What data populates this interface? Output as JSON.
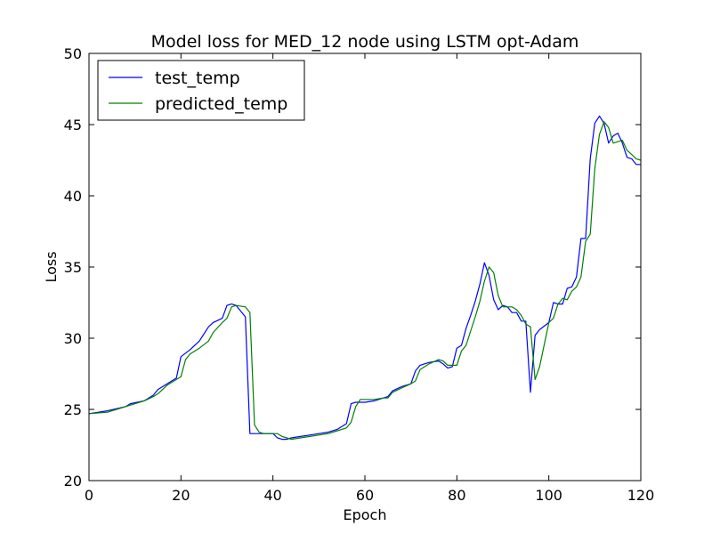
{
  "chart_data": {
    "type": "line",
    "title": "Model loss for MED_12 node using LSTM opt-Adam",
    "xlabel": "Epoch",
    "ylabel": "Loss",
    "xlim": [
      0,
      120
    ],
    "ylim": [
      20,
      50
    ],
    "xticks": [
      0,
      20,
      40,
      60,
      80,
      100,
      120
    ],
    "yticks": [
      20,
      25,
      30,
      35,
      40,
      45,
      50
    ],
    "grid": false,
    "legend_position": "top-left",
    "series": [
      {
        "name": "test_temp",
        "color": "#0000ff",
        "x": [
          0,
          4,
          8,
          9,
          12,
          14,
          15,
          17,
          19,
          20,
          22,
          24,
          26,
          27,
          29,
          30,
          31,
          32,
          34,
          35,
          36,
          38,
          40,
          41,
          42,
          43,
          44,
          46,
          48,
          50,
          52,
          54,
          56,
          57,
          58,
          60,
          62,
          64,
          65,
          66,
          68,
          70,
          71,
          72,
          74,
          76,
          77,
          78,
          79,
          80,
          81,
          82,
          83,
          84,
          85,
          86,
          87,
          88,
          89,
          90,
          91,
          92,
          93,
          94,
          95,
          96,
          97,
          98,
          100,
          101,
          102,
          103,
          104,
          105,
          106,
          107,
          108,
          109,
          110,
          111,
          112,
          113,
          114,
          115,
          116,
          117,
          118,
          119,
          120
        ],
        "y": [
          24.7,
          24.9,
          25.2,
          25.4,
          25.6,
          26.0,
          26.4,
          26.8,
          27.2,
          28.7,
          29.2,
          29.8,
          30.8,
          31.1,
          31.4,
          32.3,
          32.4,
          32.3,
          31.5,
          23.3,
          23.3,
          23.3,
          23.3,
          23.0,
          22.9,
          22.9,
          23.0,
          23.1,
          23.2,
          23.3,
          23.4,
          23.6,
          24.0,
          25.4,
          25.5,
          25.5,
          25.6,
          25.8,
          25.9,
          26.3,
          26.6,
          26.8,
          27.7,
          28.1,
          28.3,
          28.4,
          28.2,
          27.9,
          28.0,
          29.3,
          29.5,
          30.7,
          31.6,
          32.6,
          33.8,
          35.3,
          34.4,
          32.7,
          32.0,
          32.3,
          32.2,
          31.8,
          31.8,
          31.2,
          31.2,
          26.2,
          30.2,
          30.6,
          31.1,
          32.5,
          32.4,
          32.4,
          33.5,
          33.6,
          34.3,
          37.0,
          37.0,
          42.6,
          45.1,
          45.6,
          45.1,
          43.7,
          44.2,
          44.4,
          43.7,
          42.7,
          42.6,
          42.2,
          42.2
        ]
      },
      {
        "name": "predicted_temp",
        "color": "#008000",
        "x": [
          0,
          4,
          8,
          9,
          12,
          14,
          15,
          17,
          19,
          20,
          21,
          22,
          24,
          26,
          27,
          29,
          30,
          31,
          32,
          34,
          35,
          36,
          37,
          38,
          40,
          41,
          42,
          43,
          44,
          46,
          48,
          50,
          52,
          54,
          56,
          57,
          58,
          59,
          60,
          62,
          64,
          65,
          66,
          68,
          70,
          71,
          72,
          74,
          76,
          77,
          78,
          79,
          80,
          81,
          82,
          83,
          84,
          85,
          86,
          87,
          88,
          89,
          90,
          91,
          92,
          93,
          94,
          95,
          96,
          97,
          98,
          100,
          101,
          102,
          103,
          104,
          105,
          106,
          107,
          108,
          109,
          110,
          111,
          112,
          113,
          114,
          115,
          116,
          117,
          118,
          119,
          120
        ],
        "y": [
          24.7,
          24.8,
          25.2,
          25.3,
          25.6,
          25.9,
          26.1,
          26.7,
          27.1,
          27.3,
          28.5,
          28.9,
          29.3,
          29.8,
          30.4,
          31.1,
          31.4,
          32.2,
          32.3,
          32.2,
          31.8,
          23.9,
          23.4,
          23.3,
          23.3,
          23.3,
          23.1,
          23.0,
          22.9,
          23.0,
          23.1,
          23.2,
          23.3,
          23.5,
          23.7,
          24.1,
          25.2,
          25.7,
          25.7,
          25.7,
          25.8,
          25.8,
          26.2,
          26.5,
          26.8,
          27.0,
          27.8,
          28.2,
          28.5,
          28.4,
          28.1,
          28.1,
          28.1,
          29.1,
          29.5,
          30.5,
          31.5,
          32.6,
          34.0,
          35.0,
          34.6,
          33.0,
          32.2,
          32.2,
          32.2,
          32.0,
          31.6,
          31.0,
          30.8,
          27.1,
          28.0,
          31.1,
          31.4,
          32.4,
          32.8,
          32.7,
          33.3,
          33.6,
          34.3,
          36.8,
          37.3,
          41.9,
          44.3,
          45.2,
          44.8,
          43.7,
          43.8,
          43.9,
          43.2,
          42.9,
          42.6,
          42.5
        ]
      }
    ]
  }
}
